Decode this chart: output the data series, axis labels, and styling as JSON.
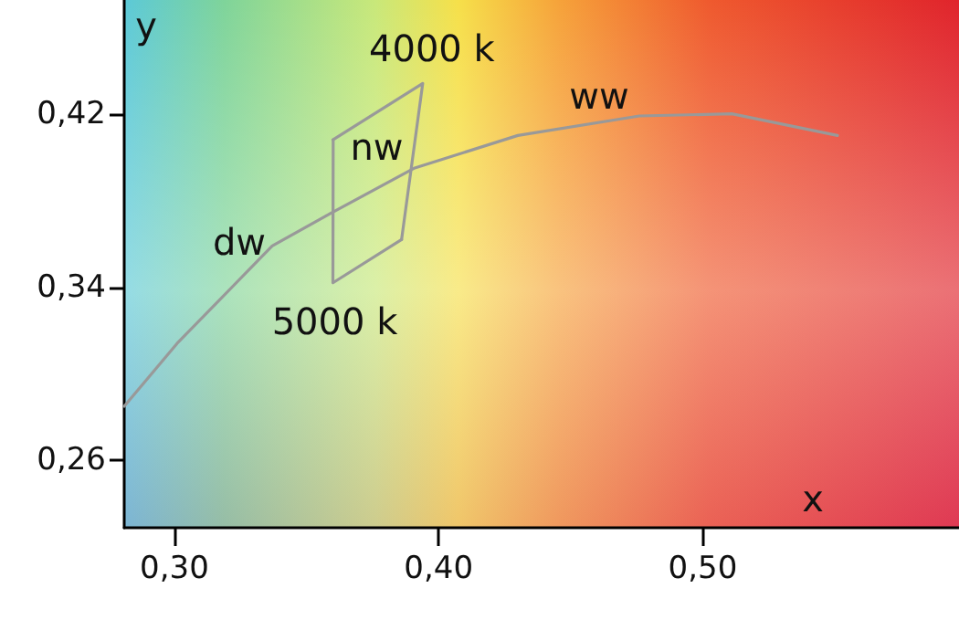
{
  "chart_data": {
    "type": "line",
    "xlabel": "x",
    "ylabel": "y",
    "xlim": [
      0.281,
      0.597
    ],
    "ylim": [
      0.229,
      0.4725
    ],
    "xticks": [
      {
        "value": 0.3,
        "label": "0,30"
      },
      {
        "value": 0.4,
        "label": "0,40"
      },
      {
        "value": 0.5,
        "label": "0,50"
      }
    ],
    "yticks": [
      {
        "value": 0.26,
        "label": "0,26"
      },
      {
        "value": 0.34,
        "label": "0,34"
      },
      {
        "value": 0.42,
        "label": "0,42"
      }
    ],
    "grid": false,
    "marker": "none",
    "line_style": "solid",
    "series": [
      {
        "color": "#999999",
        "x": [
          0.281,
          0.301,
          0.337,
          0.359,
          0.391,
          0.43,
          0.476,
          0.511,
          0.551
        ],
        "values": [
          0.285,
          0.314,
          0.359,
          0.374,
          0.395,
          0.41,
          0.419,
          0.42,
          0.41
        ]
      },
      {
        "color": "#999999",
        "x": [
          0.36,
          0.394,
          0.386
        ],
        "values": [
          0.408,
          0.434,
          0.362
        ]
      },
      {
        "color": "#999999",
        "x": [
          0.386,
          0.36,
          0.3601
        ],
        "values": [
          0.362,
          0.342,
          0.408
        ]
      }
    ],
    "annotations": [
      {
        "text": "4000 k",
        "x": 0.394,
        "y": 0.434
      },
      {
        "text": "5000 k",
        "x": 0.36,
        "y": 0.342
      },
      {
        "text": "nw",
        "x": 0.36,
        "y": 0.408
      },
      {
        "text": "dw",
        "x": 0.337,
        "y": 0.359
      },
      {
        "text": "ww",
        "x": 0.476,
        "y": 0.419
      }
    ]
  }
}
